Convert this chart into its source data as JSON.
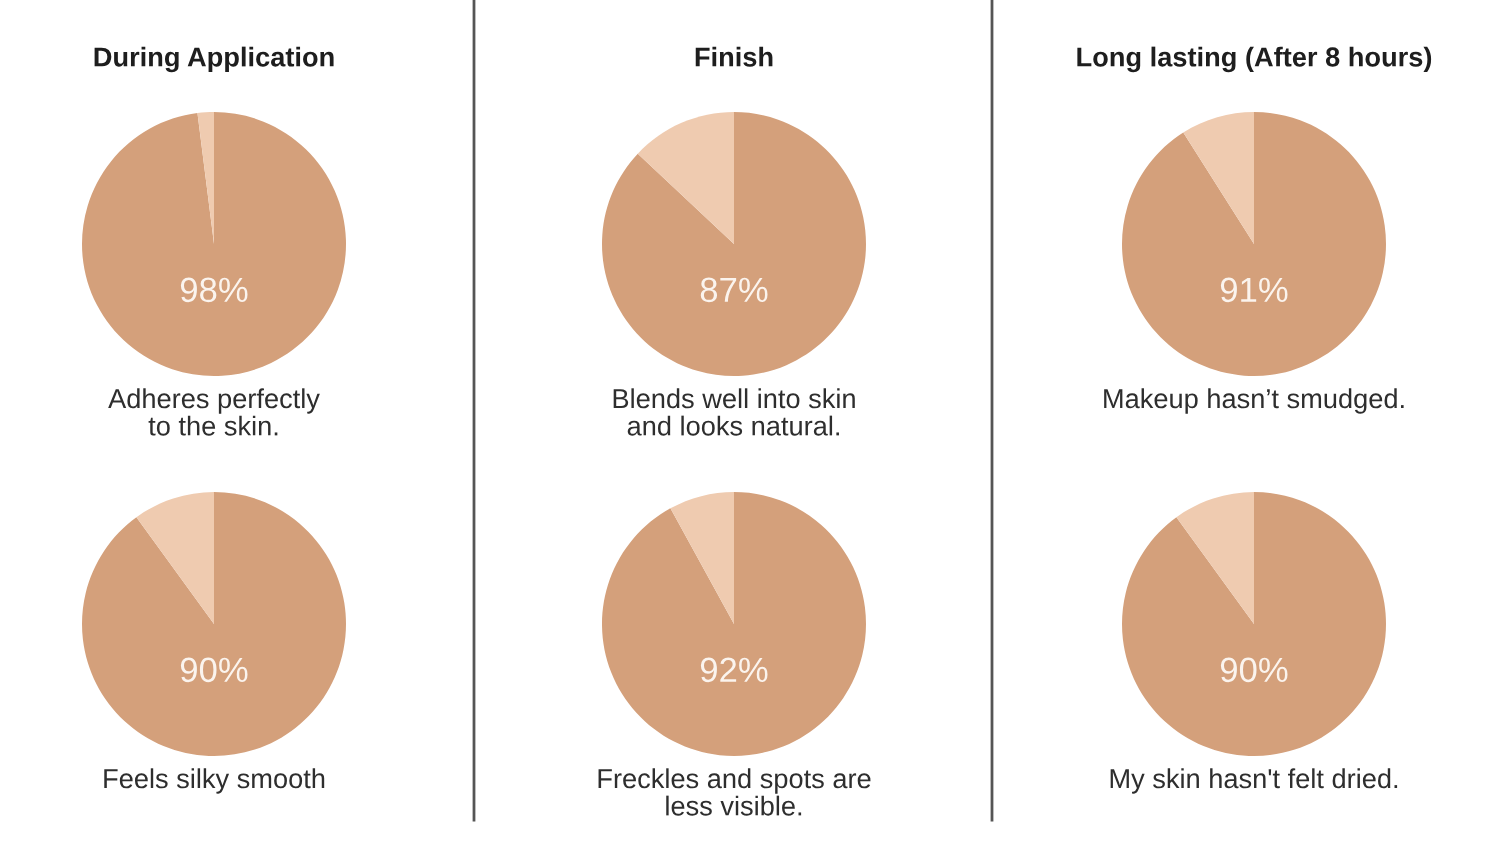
{
  "chart_data": [
    {
      "type": "pie",
      "title": "During Application",
      "xlabel": "Adheres perfectly\nto the skin.",
      "categories": [
        null,
        null
      ],
      "values": [
        98,
        2
      ],
      "colors": [
        "#d4a07b",
        "#efcbb0"
      ],
      "value_labels": [
        "98%",
        null
      ]
    },
    {
      "type": "pie",
      "title": "Finish",
      "xlabel": "Blends well into skin\nand looks natural.",
      "categories": [
        null,
        null
      ],
      "values": [
        87,
        13
      ],
      "colors": [
        "#d4a07b",
        "#efcbb0"
      ],
      "value_labels": [
        "87%",
        null
      ]
    },
    {
      "type": "pie",
      "title": "Long lasting (After 8 hours)",
      "xlabel": "Makeup hasn’t smudged.",
      "categories": [
        null,
        null
      ],
      "values": [
        91,
        9
      ],
      "colors": [
        "#d4a07b",
        "#efcbb0"
      ],
      "value_labels": [
        "91%",
        null
      ]
    },
    {
      "type": "pie",
      "xlabel": "Feels silky smooth",
      "categories": [
        null,
        null
      ],
      "values": [
        90,
        10
      ],
      "colors": [
        "#d4a07b",
        "#efcbb0"
      ],
      "value_labels": [
        "90%",
        null
      ]
    },
    {
      "type": "pie",
      "xlabel": "Freckles and spots are\nless visible.",
      "categories": [
        null,
        null
      ],
      "values": [
        92,
        8
      ],
      "colors": [
        "#d4a07b",
        "#efcbb0"
      ],
      "value_labels": [
        "92%",
        null
      ]
    },
    {
      "type": "pie",
      "xlabel": "My skin hasn't felt dried.",
      "categories": [
        null,
        null
      ],
      "values": [
        90,
        10
      ],
      "colors": [
        "#d4a07b",
        "#efcbb0"
      ],
      "value_labels": [
        "90%",
        null
      ]
    }
  ]
}
